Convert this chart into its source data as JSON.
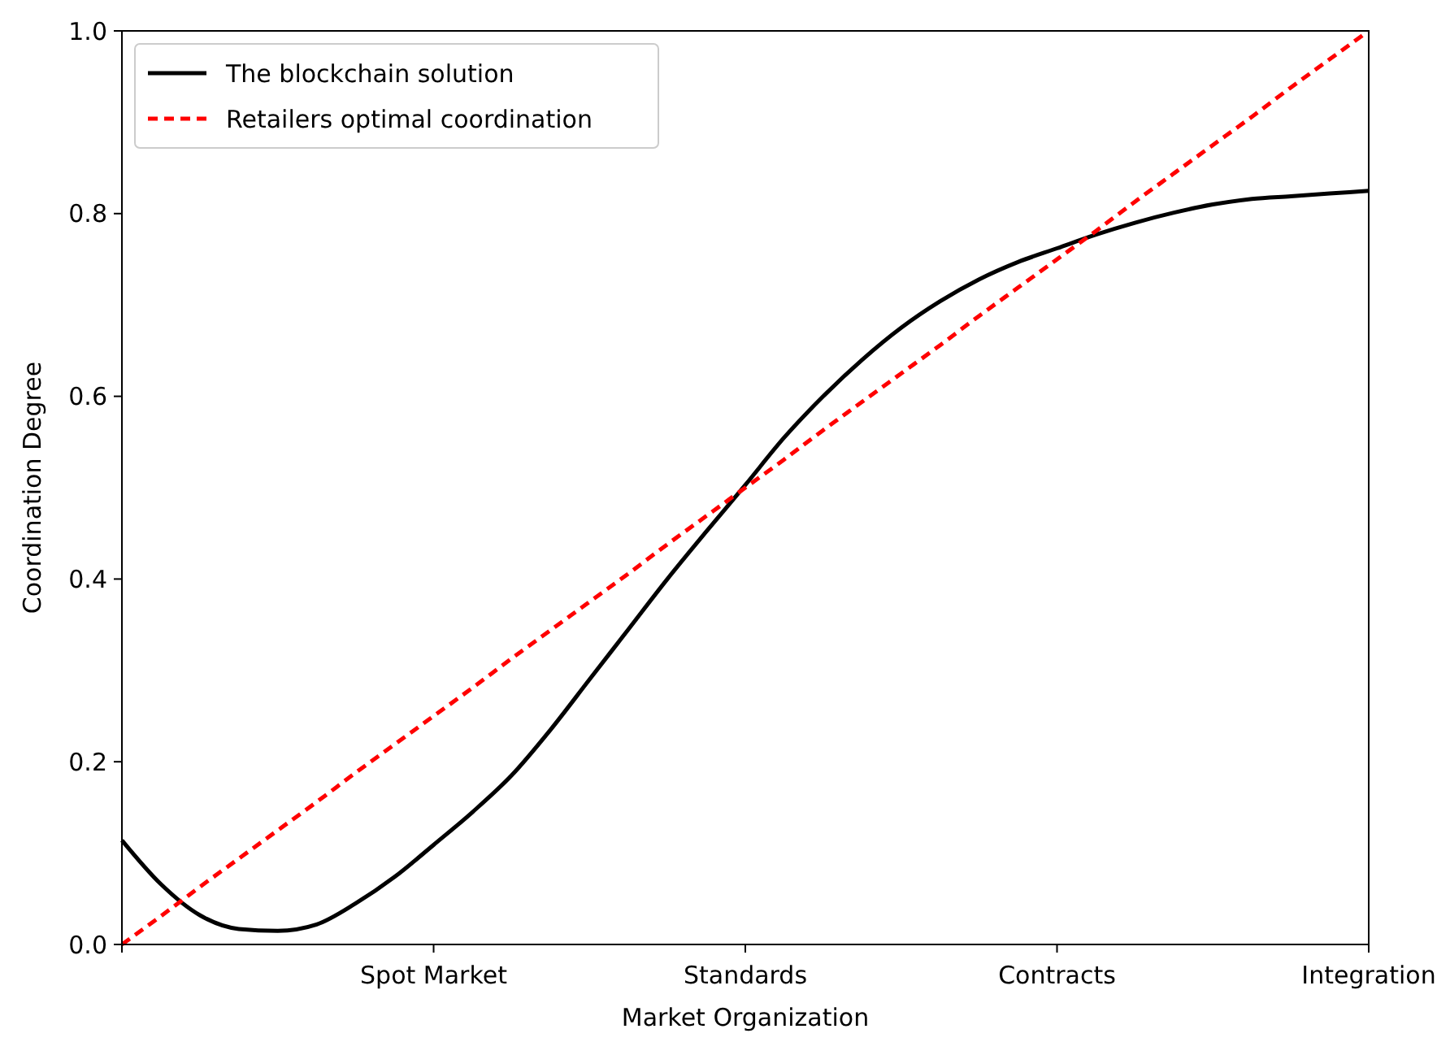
{
  "chart_data": {
    "type": "line",
    "xlabel": "Market Organization",
    "ylabel": "Coordination Degree",
    "ylim": [
      0,
      1
    ],
    "categories": [
      null,
      null,
      null,
      null,
      null,
      null,
      null,
      null,
      "Spot Market",
      null,
      null,
      null,
      null,
      null,
      null,
      null,
      "Standards",
      null,
      null,
      null,
      null,
      null,
      null,
      null,
      "Contracts",
      null,
      null,
      null,
      null,
      null,
      null,
      null,
      "Integration"
    ],
    "yticks": [
      {
        "value": 0,
        "label": "0.0"
      },
      {
        "value": 0.2,
        "label": "0.2"
      },
      {
        "value": 0.4,
        "label": "0.4"
      },
      {
        "value": 0.6,
        "label": "0.6"
      },
      {
        "value": 0.8,
        "label": "0.8"
      },
      {
        "value": 1,
        "label": "1.0"
      }
    ],
    "grid": false,
    "legend": "top left",
    "marker": "none",
    "series": [
      {
        "name": "The blockchain solution",
        "color": "#000000",
        "line_style": "solid",
        "values": [
          0.114,
          0.066,
          0.032,
          0.017,
          0.015,
          0.022,
          0.045,
          0.074,
          0.109,
          0.145,
          0.185,
          0.235,
          0.29,
          0.345,
          0.4,
          0.452,
          0.503,
          0.555,
          0.6,
          0.64,
          0.675,
          0.704,
          0.728,
          0.747,
          0.762,
          0.777,
          0.79,
          0.801,
          0.81,
          0.816,
          0.819,
          0.822,
          0.825
        ]
      },
      {
        "name": "Retailers optimal coordination",
        "color": "#ff0000",
        "line_style": "dashed",
        "values": [
          0,
          0.031,
          0.063,
          0.094,
          0.125,
          0.156,
          0.188,
          0.219,
          0.25,
          0.281,
          0.313,
          0.344,
          0.375,
          0.406,
          0.438,
          0.469,
          0.5,
          0.531,
          0.563,
          0.594,
          0.625,
          0.656,
          0.688,
          0.719,
          0.75,
          0.781,
          0.813,
          0.844,
          0.875,
          0.906,
          0.938,
          0.969,
          1
        ]
      }
    ]
  }
}
